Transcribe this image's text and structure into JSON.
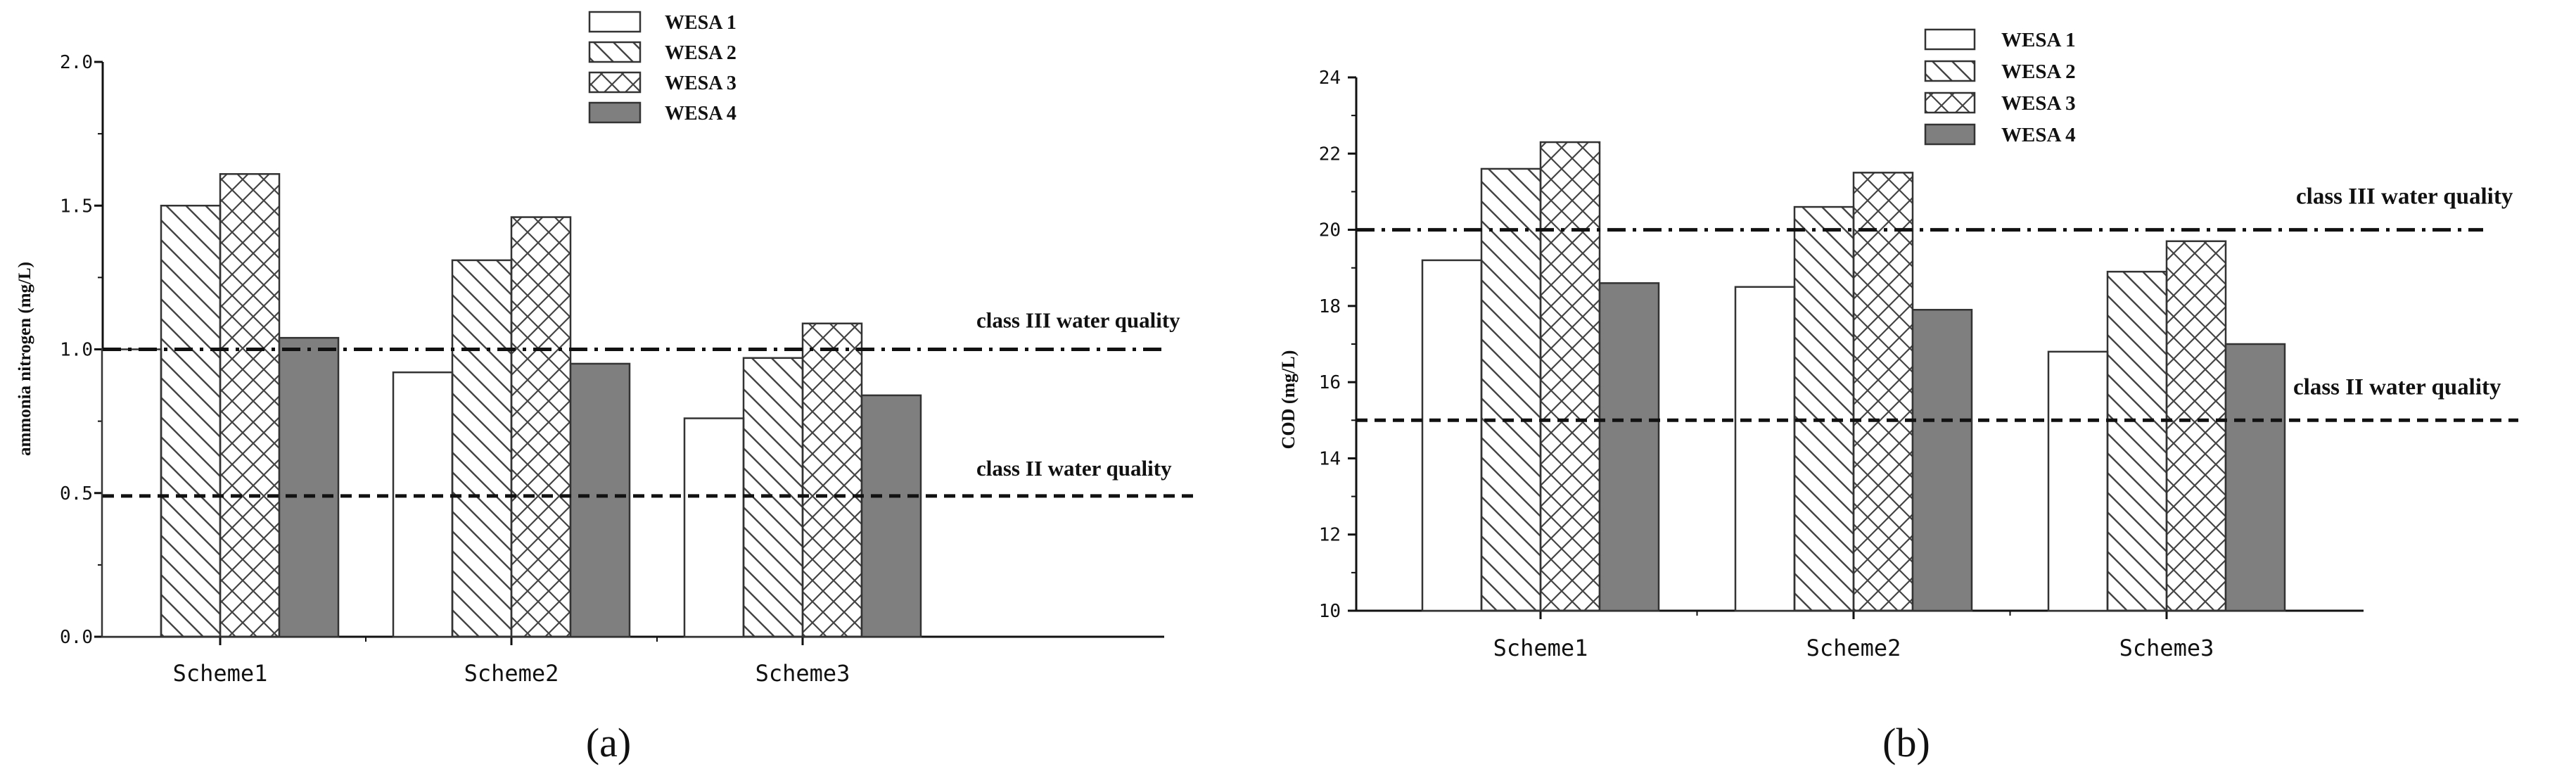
{
  "colors": {
    "axis": "#111111",
    "bar_outline": "#333333",
    "solid_fill": "#7f7f7f",
    "ref_line": "#111111"
  },
  "chart_data": [
    {
      "type": "bar",
      "panel_label": "(a)",
      "categories": [
        "Scheme1",
        "Scheme2",
        "Scheme3"
      ],
      "series": [
        {
          "name": "WESA 1",
          "pattern": "blank",
          "values": [
            1.0,
            0.92,
            0.76
          ]
        },
        {
          "name": "WESA 2",
          "pattern": "diagonal",
          "values": [
            1.5,
            1.31,
            0.97
          ]
        },
        {
          "name": "WESA 3",
          "pattern": "crosshatch",
          "values": [
            1.61,
            1.46,
            1.09
          ]
        },
        {
          "name": "WESA 4",
          "pattern": "solid",
          "values": [
            1.04,
            0.95,
            0.84
          ]
        }
      ],
      "ylabel": "ammonia nitrogen (mg/L)",
      "xlabel": "",
      "ylim": [
        0.0,
        2.0
      ],
      "yticks": [
        "0.0",
        "0.5",
        "1.0",
        "1.5",
        "2.0"
      ],
      "reference_lines": [
        {
          "label": "class III water quality",
          "value": 1.0,
          "style": "dash-dot"
        },
        {
          "label": "class II water quality",
          "value": 0.49,
          "style": "dashed"
        }
      ],
      "legend_position": "top-center",
      "grid": false
    },
    {
      "type": "bar",
      "panel_label": "(b)",
      "categories": [
        "Scheme1",
        "Scheme2",
        "Scheme3"
      ],
      "series": [
        {
          "name": "WESA  1",
          "pattern": "blank",
          "values": [
            19.2,
            18.5,
            16.8
          ]
        },
        {
          "name": "WESA  2",
          "pattern": "diagonal",
          "values": [
            21.6,
            20.6,
            18.9
          ]
        },
        {
          "name": "WESA  3",
          "pattern": "crosshatch",
          "values": [
            22.3,
            21.5,
            19.7
          ]
        },
        {
          "name": "WESA  4",
          "pattern": "solid",
          "values": [
            18.6,
            17.9,
            17.0
          ]
        }
      ],
      "ylabel": "COD (mg/L)",
      "xlabel": "",
      "ylim": [
        10,
        24
      ],
      "yticks": [
        "10",
        "12",
        "14",
        "16",
        "18",
        "20",
        "22",
        "24"
      ],
      "reference_lines": [
        {
          "label": "class III water quality",
          "value": 20.0,
          "style": "dash-dot"
        },
        {
          "label": "class II water quality",
          "value": 15.0,
          "style": "dashed"
        }
      ],
      "legend_position": "top-center",
      "grid": false
    }
  ]
}
